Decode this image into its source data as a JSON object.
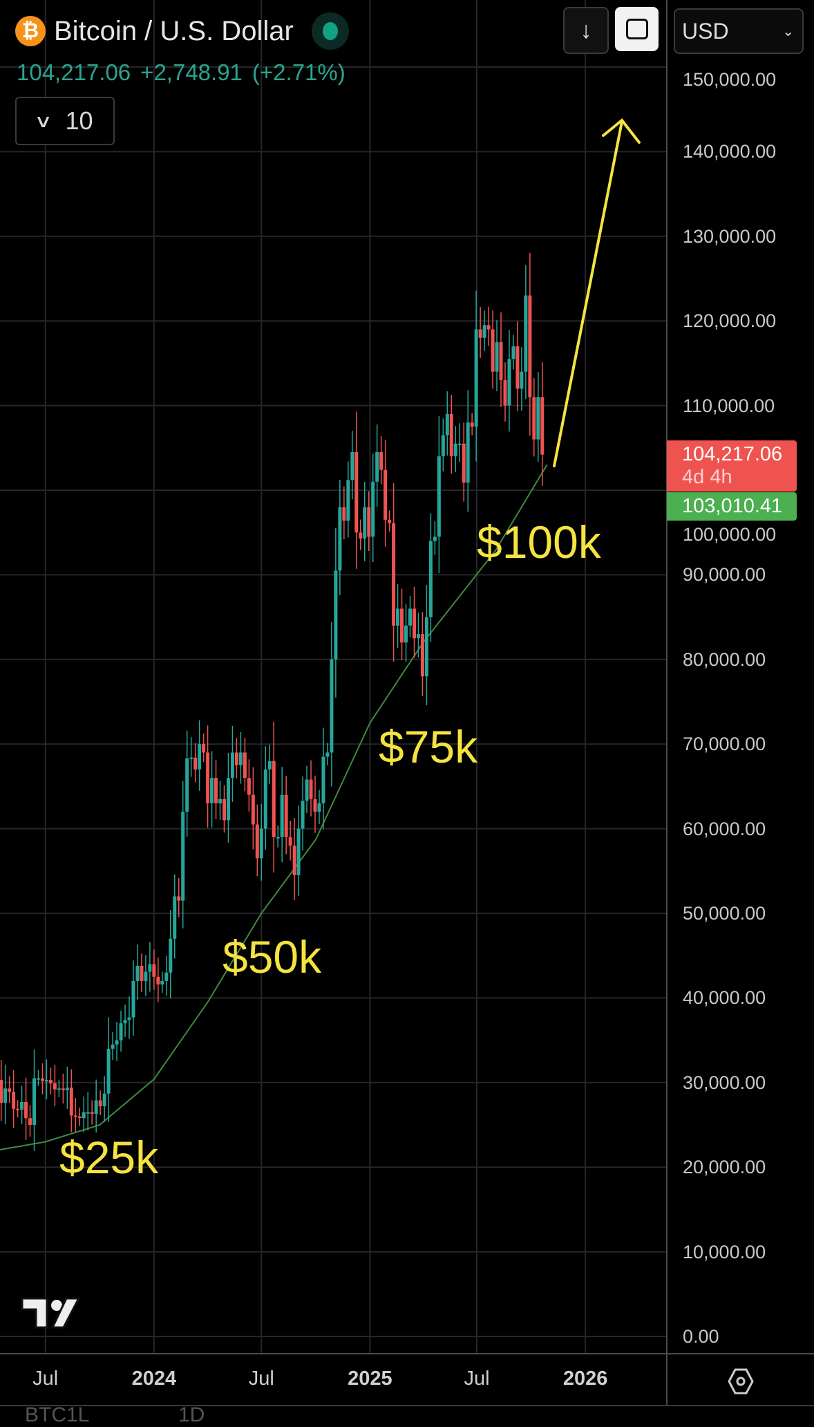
{
  "header": {
    "symbol_icon": "bitcoin-icon",
    "title": "Bitcoin / U.S. Dollar",
    "status": "market-open-dot",
    "price": "104,217.06",
    "change": "+2,748.91",
    "change_pct": "(+2.71%)",
    "indicator_count": "10"
  },
  "toolbar": {
    "download_icon": "arrow-down-icon",
    "fullscreen_icon": "fullscreen-icon",
    "currency": "USD"
  },
  "price_labels": {
    "last": "104,217.06",
    "countdown": "4d 4h",
    "ma": "103,010.41"
  },
  "annotations": [
    "$25k",
    "$50k",
    "$75k",
    "$100k"
  ],
  "footer": {
    "symbol": "BTC1L",
    "interval": "1D"
  },
  "colors": {
    "up": "#26a69a",
    "down": "#ef5350",
    "ma": "#3f8a3f",
    "annotation": "#f5e340",
    "grid": "#26262b"
  },
  "chart_data": {
    "type": "candlestick",
    "title": "Bitcoin / U.S. Dollar",
    "ylabel": "USD",
    "ylim": [
      0,
      150000
    ],
    "y_ticks": [
      "150,000.00",
      "140,000.00",
      "130,000.00",
      "120,000.00",
      "110,000.00",
      "100,000.00",
      "90,000.00",
      "80,000.00",
      "70,000.00",
      "60,000.00",
      "50,000.00",
      "40,000.00",
      "30,000.00",
      "20,000.00",
      "10,000.00",
      "0.00"
    ],
    "x_ticks": [
      {
        "label": "Jul",
        "date": "2023-07-01",
        "bold": false
      },
      {
        "label": "2024",
        "date": "2024-01-01",
        "bold": true
      },
      {
        "label": "Jul",
        "date": "2024-07-01",
        "bold": false
      },
      {
        "label": "2025",
        "date": "2025-01-01",
        "bold": true
      },
      {
        "label": "Jul",
        "date": "2025-07-01",
        "bold": false
      },
      {
        "label": "2026",
        "date": "2026-01-01",
        "bold": true
      }
    ],
    "candle_start": "2023-04-10",
    "candle_interval_days": 7,
    "start_open": 28.5,
    "value_unit": "thousand USD",
    "closes": [
      30.3,
      27.6,
      29.3,
      28.9,
      26.9,
      26.8,
      27.7,
      25.8,
      25.0,
      30.5,
      30.5,
      30.2,
      30.3,
      29.9,
      29.2,
      29.3,
      29.1,
      29.4,
      26.1,
      26.0,
      25.8,
      26.5,
      26.5,
      26.3,
      27.9,
      27.2,
      28.7,
      34.0,
      34.5,
      35.0,
      37.0,
      37.4,
      37.7,
      42.0,
      43.8,
      42.0,
      43.1,
      44.0,
      42.5,
      41.6,
      42.0,
      43.0,
      47.0,
      52.0,
      51.5,
      62.0,
      68.3,
      68.4,
      67.0,
      70.0,
      69.0,
      63.0,
      66.0,
      63.0,
      63.5,
      61.0,
      66.0,
      69.0,
      67.5,
      69.0,
      66.0,
      64.0,
      60.5,
      56.5,
      60.0,
      67.0,
      68.0,
      59.0,
      59.0,
      64.0,
      59.0,
      58.0,
      54.5,
      60.0,
      63.3,
      65.8,
      63.5,
      62.0,
      63.0,
      68.5,
      69.0,
      80.0,
      90.5,
      98.0,
      96.4,
      101.2,
      104.5,
      95.0,
      94.3,
      98.0,
      94.5,
      101.0,
      104.5,
      102.4,
      96.5,
      96.1,
      84.0,
      86.0,
      82.0,
      84.0,
      86.0,
      82.5,
      83.0,
      78.0,
      85.0,
      94.0,
      94.5,
      104.0,
      106.5,
      109.0,
      104.0,
      105.5,
      105.5,
      100.9,
      108.0,
      107.5,
      119.0,
      118.0,
      119.5,
      119.0,
      114.0,
      117.5,
      113.0,
      110.0,
      115.5,
      117.0,
      112.0,
      114.0,
      123.0,
      111.0,
      106.0,
      111.0,
      104.2
    ],
    "series": [
      {
        "name": "Moving Average",
        "last": 103010.41,
        "points": [
          [
            "2023-04-10",
            22.0
          ],
          [
            "2023-07-01",
            23.0
          ],
          [
            "2023-10-01",
            25.0
          ],
          [
            "2024-01-01",
            30.4
          ],
          [
            "2024-04-01",
            39.5
          ],
          [
            "2024-07-01",
            50.0
          ],
          [
            "2024-10-01",
            58.7
          ],
          [
            "2025-01-01",
            72.5
          ],
          [
            "2025-04-01",
            82.0
          ],
          [
            "2025-08-01",
            92.8
          ],
          [
            "2025-10-28",
            103.0
          ]
        ]
      }
    ],
    "annotations": [
      {
        "text": "$25k"
      },
      {
        "text": "$50k"
      },
      {
        "text": "$75k"
      },
      {
        "text": "$100k"
      },
      {
        "type": "arrow",
        "direction": "up",
        "target": 145000
      }
    ]
  }
}
